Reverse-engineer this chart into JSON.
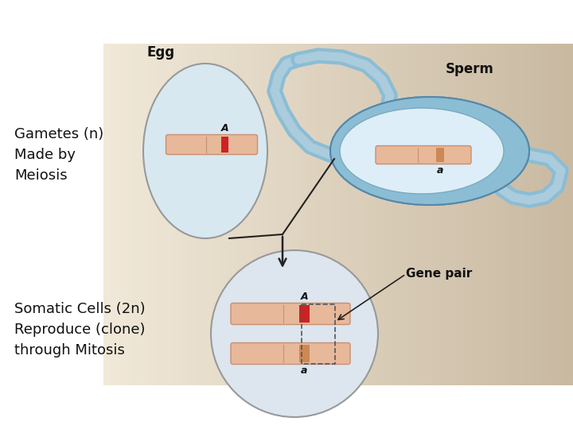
{
  "bg_color": "#ffffff",
  "chrom_color": "#e8b89a",
  "chrom_edge": "#c89070",
  "marker_A_color": "#cc2222",
  "marker_a_color": "#cc8855",
  "text_gametes": "Gametes (n)\nMade by\nMeiosis",
  "text_somatic": "Somatic Cells (2n)\nReproduce (clone)\nthrough Mitosis",
  "text_egg": "Egg",
  "text_sperm": "Sperm",
  "text_gene_pair": "Gene pair",
  "arrow_color": "#222222",
  "font_size_side": 13,
  "font_size_cell_labels": 12,
  "sperm_outer_color": "#8bbdd4",
  "sperm_inner_fill": "#c8dfe8",
  "egg_fill": "#d8e8f0",
  "egg_edge": "#999999",
  "somatic_fill": "#dde5ee",
  "somatic_edge": "#999999",
  "diagram_bg_left": "#f0e8d8",
  "diagram_bg_right": "#c8b898"
}
